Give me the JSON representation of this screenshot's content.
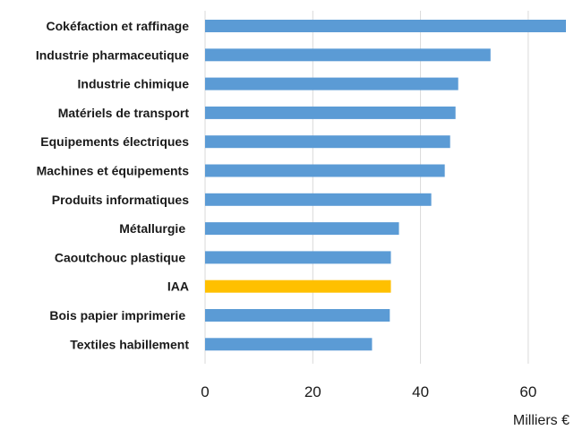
{
  "chart_data": {
    "type": "bar",
    "orientation": "horizontal",
    "categories": [
      "Cokéfaction et raffinage",
      "Industrie pharmaceutique",
      "Industrie chimique",
      "Matériels de transport",
      "Equipements électriques",
      "Machines et équipements",
      "Produits informatiques",
      "Métallurgie ",
      "Caoutchouc plastique ",
      "IAA",
      "Bois papier imprimerie ",
      "Textiles habillement"
    ],
    "values": [
      67,
      53,
      47,
      46.5,
      45.5,
      44.5,
      42,
      36,
      34.5,
      34.5,
      34.3,
      31
    ],
    "bar_colors": [
      "#5b9bd5",
      "#5b9bd5",
      "#5b9bd5",
      "#5b9bd5",
      "#5b9bd5",
      "#5b9bd5",
      "#5b9bd5",
      "#5b9bd5",
      "#5b9bd5",
      "#ffc000",
      "#5b9bd5",
      "#5b9bd5"
    ],
    "xlim": [
      0,
      67
    ],
    "xticks": [
      0,
      20,
      40,
      60
    ],
    "xlabel": "Milliers €",
    "grid": true
  }
}
